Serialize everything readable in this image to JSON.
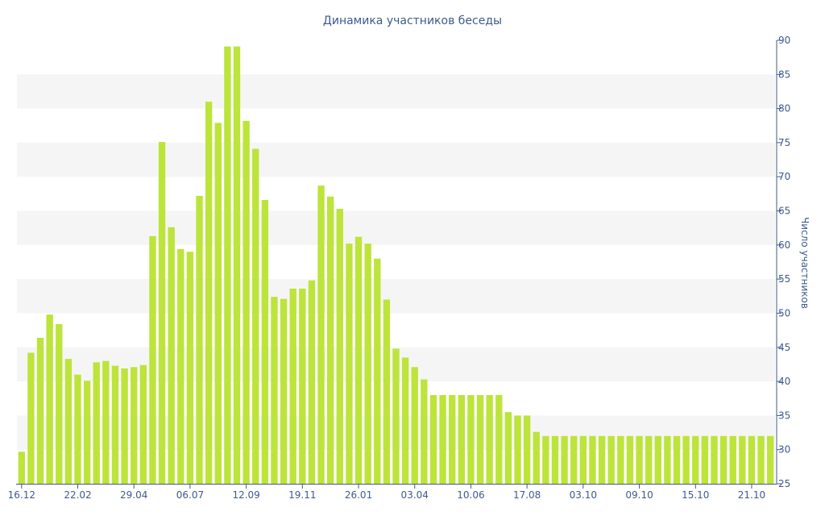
{
  "chart_data": {
    "type": "bar",
    "title": "Динамика участников беседы",
    "ylabel": "Число участников",
    "xlabel": "",
    "ylim": [
      25,
      90
    ],
    "y_ticks": [
      "25",
      "30",
      "35",
      "40",
      "45",
      "50",
      "55",
      "60",
      "65",
      "70",
      "75",
      "80",
      "85",
      "90"
    ],
    "y_axis_side": "right",
    "grid": "alternating horizontal bands",
    "x_tick_labels": [
      "16.12",
      "22.02",
      "29.04",
      "06.07",
      "12.09",
      "19.11",
      "26.01",
      "03.04",
      "10.06",
      "17.08",
      "03.10",
      "09.10",
      "15.10",
      "21.10"
    ],
    "x_tick_positions": [
      0,
      6,
      12,
      18,
      24,
      30,
      36,
      42,
      48,
      54,
      60,
      66,
      72,
      78
    ],
    "values": [
      29.7,
      44.2,
      46.4,
      49.8,
      48.4,
      43.3,
      41.0,
      40.1,
      42.8,
      43.0,
      42.3,
      41.9,
      42.1,
      42.4,
      61.3,
      75.1,
      62.6,
      59.4,
      59.0,
      67.2,
      81.0,
      77.9,
      89.1,
      89.1,
      78.2,
      74.1,
      66.6,
      52.4,
      52.1,
      53.6,
      53.6,
      54.8,
      68.7,
      67.1,
      65.3,
      60.2,
      61.2,
      60.2,
      58.0,
      52.0,
      44.8,
      43.5,
      42.1,
      40.3,
      38.0,
      38.0,
      38.0,
      38.0,
      38.0,
      38.0,
      38.0,
      38.0,
      35.5,
      35.0,
      35.0,
      32.6,
      32.0,
      32.0,
      32.0,
      32.0,
      32.0,
      32.0,
      32.0,
      32.0,
      32.0,
      32.0,
      32.0,
      32.0,
      32.0,
      32.0,
      32.0,
      32.0,
      32.0,
      32.0,
      32.0,
      32.0,
      32.0,
      32.0,
      32.0,
      32.0,
      32.0
    ],
    "colors": {
      "bar": "#bde43a",
      "band": "#f5f5f5",
      "text": "#3d5a8c",
      "axis": "#3d5a8c"
    }
  }
}
